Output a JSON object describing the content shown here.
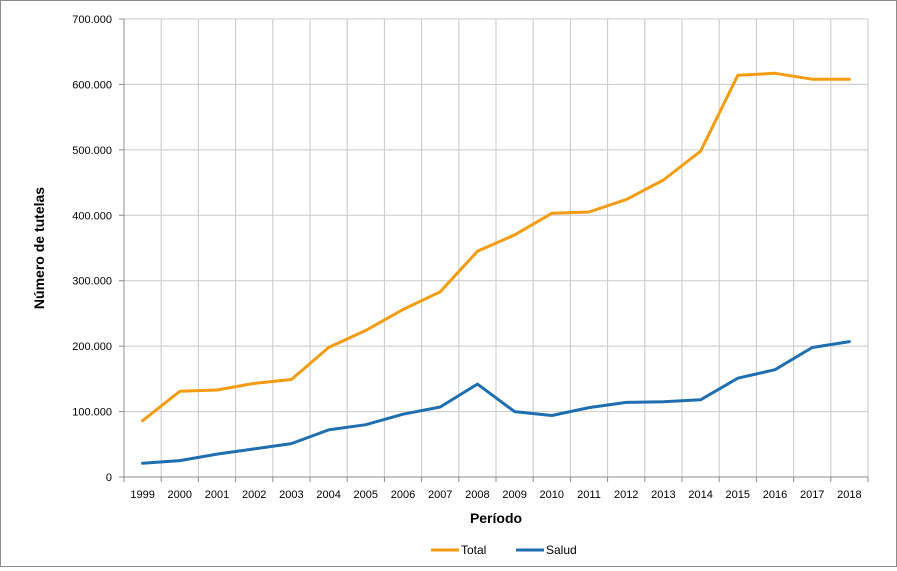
{
  "chart_data": {
    "type": "line",
    "title": "",
    "xlabel": "Período",
    "ylabel": "Número de tutelas",
    "categories": [
      "1999",
      "2000",
      "2001",
      "2002",
      "2003",
      "2004",
      "2005",
      "2006",
      "2007",
      "2008",
      "2009",
      "2010",
      "2011",
      "2012",
      "2013",
      "2014",
      "2015",
      "2016",
      "2017",
      "2018"
    ],
    "ylim": [
      0,
      700000
    ],
    "yticks": [
      0,
      100000,
      200000,
      300000,
      400000,
      500000,
      600000,
      700000
    ],
    "ytick_labels": [
      "0",
      "100.000",
      "200.000",
      "300.000",
      "400.000",
      "500.000",
      "600.000",
      "700.000"
    ],
    "grid": true,
    "legend_position": "bottom",
    "series": [
      {
        "name": "Total",
        "color": "#f39c12",
        "values": [
          86000,
          131000,
          133000,
          143000,
          149000,
          198000,
          224000,
          256000,
          283000,
          345000,
          370000,
          403000,
          405000,
          424000,
          454000,
          498000,
          614000,
          617000,
          608000,
          608000
        ]
      },
      {
        "name": "Salud",
        "color": "#1f6fb0",
        "values": [
          21000,
          25000,
          35000,
          43000,
          51000,
          72000,
          80000,
          96000,
          107000,
          142000,
          100000,
          94000,
          106000,
          114000,
          115000,
          118000,
          151000,
          164000,
          198000,
          207000
        ]
      }
    ]
  }
}
